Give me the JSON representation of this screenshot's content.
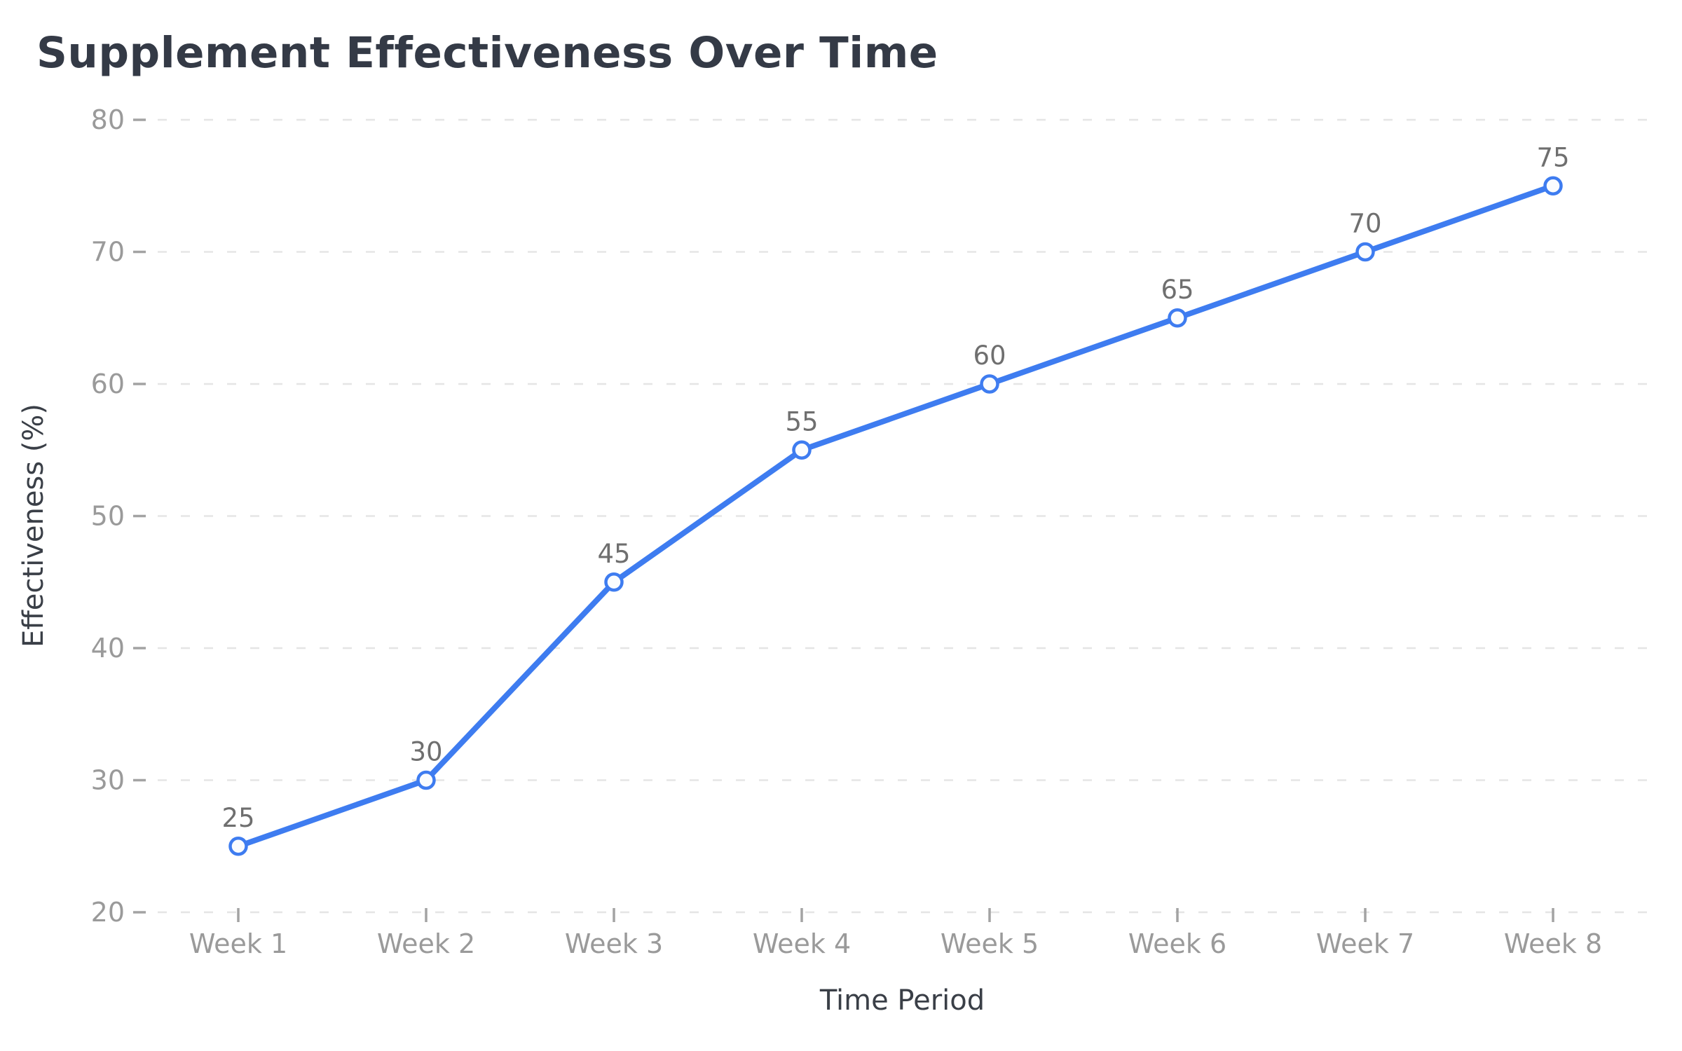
{
  "chart_data": {
    "type": "line",
    "title": "Supplement Effectiveness Over Time",
    "categories": [
      "Week 1",
      "Week 2",
      "Week 3",
      "Week 4",
      "Week 5",
      "Week 6",
      "Week 7",
      "Week 8"
    ],
    "values": [
      25,
      30,
      45,
      55,
      60,
      65,
      70,
      75
    ],
    "point_labels": [
      "25",
      "30",
      "45",
      "55",
      "60",
      "65",
      "70",
      "75"
    ],
    "xlabel": "Time Period",
    "ylabel": "Effectiveness (%)",
    "ylim": [
      20,
      80
    ],
    "yticks": [
      20,
      30,
      40,
      50,
      60,
      70,
      80
    ],
    "grid": "horizontal-dashed",
    "legend": "none",
    "series_name": "Effectiveness"
  },
  "colors": {
    "line": "#3e7cf0",
    "marker_fill": "#fafcfe",
    "marker_stroke": "#3e7cf0",
    "gridline": "#e5e5e5",
    "tick_mark": "#a3a3a3",
    "tick_label": "#9a9a9a",
    "data_label": "#6f6f6f",
    "axis_title": "#3a3f47",
    "title": "#343a46",
    "background": "#ffffff"
  }
}
